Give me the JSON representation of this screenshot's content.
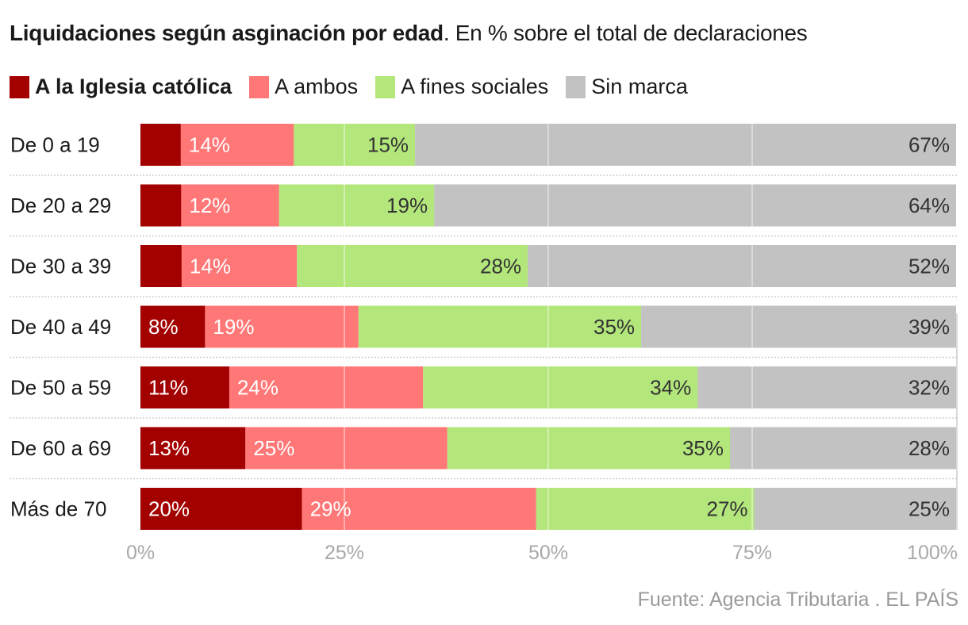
{
  "title": {
    "bold": "Liquidaciones según asginación por edad",
    "rest": ". En % sobre el total de declaraciones"
  },
  "source": "Fuente: Agencia Tributaria . EL PAÍS",
  "chart_data": {
    "type": "bar",
    "orientation": "horizontal",
    "stacked": true,
    "title": "Liquidaciones según asginación por edad. En % sobre el total de declaraciones",
    "xlabel": "",
    "ylabel": "",
    "xlim": [
      0,
      100
    ],
    "x_ticks": [
      "0%",
      "25%",
      "50%",
      "75%",
      "100%"
    ],
    "x_tick_values": [
      0,
      25,
      50,
      75,
      100
    ],
    "grid": true,
    "legend_position": "top-left",
    "categories": [
      "De 0 a 19",
      "De 20 a 29",
      "De 30 a 39",
      "De 40 a 49",
      "De 50 a 59",
      "De 60 a 69",
      "Más de 70"
    ],
    "series": [
      {
        "name": "A la Iglesia católica",
        "color": "#a30000",
        "label_color": "#ffffff",
        "values": [
          5,
          5,
          5,
          8,
          11,
          13,
          20
        ],
        "labels": [
          "",
          "",
          "",
          "8%",
          "11%",
          "13%",
          "20%"
        ]
      },
      {
        "name": "A ambos",
        "color": "#ff7777",
        "label_color": "#ffffff",
        "values": [
          14,
          12,
          14,
          19,
          24,
          25,
          29
        ],
        "labels": [
          "14%",
          "12%",
          "14%",
          "19%",
          "24%",
          "25%",
          "29%"
        ]
      },
      {
        "name": "A fines sociales",
        "color": "#b3e67b",
        "label_color": "#333333",
        "values": [
          15,
          19,
          28,
          35,
          34,
          35,
          27
        ],
        "labels": [
          "15%",
          "19%",
          "28%",
          "35%",
          "34%",
          "35%",
          "27%"
        ]
      },
      {
        "name": "Sin marca",
        "color": "#c2c2c2",
        "label_color": "#333333",
        "values": [
          67,
          64,
          52,
          39,
          32,
          28,
          25
        ],
        "labels": [
          "67%",
          "64%",
          "52%",
          "39%",
          "32%",
          "28%",
          "25%"
        ]
      }
    ]
  }
}
